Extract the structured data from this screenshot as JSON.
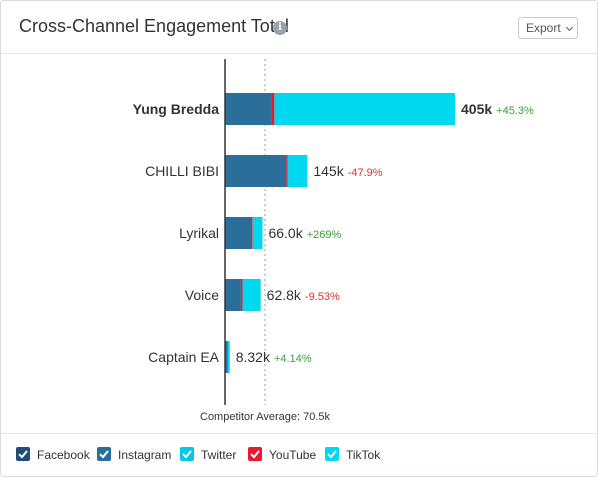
{
  "widget": {
    "title": "Cross-Channel Engagement Total",
    "info_icon": "info-icon",
    "export_label": "Export"
  },
  "chart_data": {
    "type": "bar",
    "stacked": true,
    "orientation": "horizontal",
    "categories": [
      "Yung Bredda",
      "CHILLI BIBI",
      "Lyrikal",
      "Voice",
      "Captain EA"
    ],
    "highlighted_category": "Yung Bredda",
    "series": [
      {
        "name": "Facebook",
        "color": "#1f4e79",
        "values": [
          0,
          0,
          0,
          0,
          0
        ]
      },
      {
        "name": "Instagram",
        "color": "#2b6e99",
        "values": [
          82000,
          108000,
          48000,
          28000,
          5000
        ]
      },
      {
        "name": "Twitter",
        "color": "#00d4ee",
        "values": [
          0,
          0,
          0,
          0,
          0
        ]
      },
      {
        "name": "YouTube",
        "color": "#e8192c",
        "values": [
          5000,
          2000,
          1000,
          3000,
          0
        ]
      },
      {
        "name": "TikTok",
        "color": "#00d8f0",
        "values": [
          318000,
          35000,
          17000,
          31800,
          3320
        ]
      }
    ],
    "total_labels": [
      "405k",
      "145k",
      "66.0k",
      "62.8k",
      "8.32k"
    ],
    "change_labels": [
      "+45.3%",
      "-47.9%",
      "+269%",
      "-9.53%",
      "+4.14%"
    ],
    "change_colors": [
      "#3aa03a",
      "#e03030",
      "#3aa03a",
      "#e03030",
      "#3aa03a"
    ],
    "reference_line": {
      "label": "Competitor Average: 70.5k",
      "value": 70500
    },
    "xlim": [
      0,
      405000
    ],
    "grid": false,
    "legend_position": "bottom"
  },
  "legend": [
    {
      "label": "Facebook",
      "color": "#1f4e79",
      "checked": true
    },
    {
      "label": "Instagram",
      "color": "#2b6e99",
      "checked": true
    },
    {
      "label": "Twitter",
      "color": "#00c8e8",
      "checked": true
    },
    {
      "label": "YouTube",
      "color": "#e8192c",
      "checked": true
    },
    {
      "label": "TikTok",
      "color": "#00d8f0",
      "checked": true
    }
  ]
}
